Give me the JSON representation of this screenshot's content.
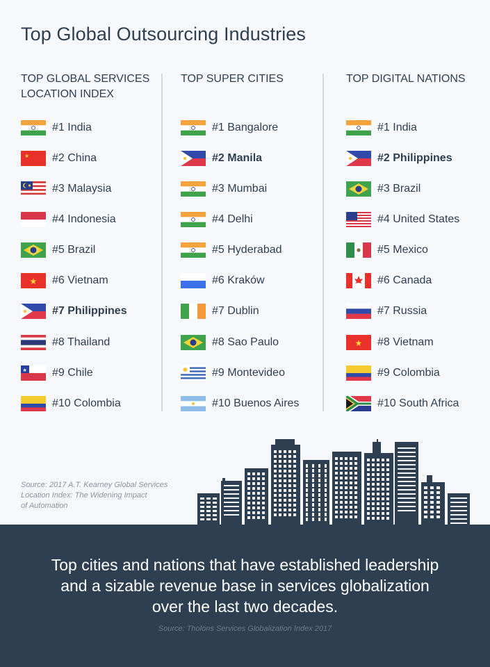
{
  "title": "Top Global Outsourcing Industries",
  "columns": [
    {
      "heading_line1": "TOP GLOBAL SERVICES",
      "heading_line2": "LOCATION INDEX",
      "items": [
        {
          "label": "#1 India",
          "flag": "india-flag-icon",
          "bold": false
        },
        {
          "label": "#2 China",
          "flag": "china-flag-icon",
          "bold": false
        },
        {
          "label": "#3 Malaysia",
          "flag": "malaysia-flag-icon",
          "bold": false
        },
        {
          "label": "#4 Indonesia",
          "flag": "indonesia-flag-icon",
          "bold": false
        },
        {
          "label": "#5 Brazil",
          "flag": "brazil-flag-icon",
          "bold": false
        },
        {
          "label": "#6 Vietnam",
          "flag": "vietnam-flag-icon",
          "bold": false
        },
        {
          "label": "#7 Philippines",
          "flag": "philippines-flag-icon",
          "bold": true
        },
        {
          "label": "#8 Thailand",
          "flag": "thailand-flag-icon",
          "bold": false
        },
        {
          "label": "#9 Chile",
          "flag": "chile-flag-icon",
          "bold": false
        },
        {
          "label": "#10 Colombia",
          "flag": "colombia-flag-icon",
          "bold": false
        }
      ]
    },
    {
      "heading_line1": "TOP SUPER CITIES",
      "heading_line2": "",
      "items": [
        {
          "label": "#1 Bangalore",
          "flag": "india-flag-icon",
          "bold": false
        },
        {
          "label": "#2 Manila",
          "flag": "philippines-flag-icon",
          "bold": true
        },
        {
          "label": "#3 Mumbai",
          "flag": "india-flag-icon",
          "bold": false
        },
        {
          "label": "#4 Delhi",
          "flag": "india-flag-icon",
          "bold": false
        },
        {
          "label": "#5 Hyderabad",
          "flag": "india-flag-icon",
          "bold": false
        },
        {
          "label": "#6 Kraków",
          "flag": "poland-flag-icon",
          "bold": false
        },
        {
          "label": "#7 Dublin",
          "flag": "ireland-flag-icon",
          "bold": false
        },
        {
          "label": "#8 Sao Paulo",
          "flag": "brazil-flag-icon",
          "bold": false
        },
        {
          "label": "#9 Montevideo",
          "flag": "uruguay-flag-icon",
          "bold": false
        },
        {
          "label": "#10 Buenos Aires",
          "flag": "argentina-flag-icon",
          "bold": false
        }
      ]
    },
    {
      "heading_line1": "TOP DIGITAL NATIONS",
      "heading_line2": "",
      "items": [
        {
          "label": "#1 India",
          "flag": "india-flag-icon",
          "bold": false
        },
        {
          "label": "#2 Philippines",
          "flag": "philippines-flag-icon",
          "bold": true
        },
        {
          "label": "#3 Brazil",
          "flag": "brazil-flag-icon",
          "bold": false
        },
        {
          "label": "#4 United States",
          "flag": "usa-flag-icon",
          "bold": false
        },
        {
          "label": "#5 Mexico",
          "flag": "mexico-flag-icon",
          "bold": false
        },
        {
          "label": "#6 Canada",
          "flag": "canada-flag-icon",
          "bold": false
        },
        {
          "label": "#7 Russia",
          "flag": "russia-flag-icon",
          "bold": false
        },
        {
          "label": "#8 Vietnam",
          "flag": "vietnam-flag-icon",
          "bold": false
        },
        {
          "label": "#9 Colombia",
          "flag": "colombia-flag-icon",
          "bold": false
        },
        {
          "label": "#10 South Africa",
          "flag": "south-africa-flag-icon",
          "bold": false
        }
      ]
    }
  ],
  "source_left": {
    "line1": "Source: 2017 A.T. Kearney Global Services",
    "line2": "Location Index: The Widening Impact",
    "line3": "of Automation"
  },
  "bottom": {
    "line1": "Top cities and nations that have established leadership",
    "line2": "and a sizable revenue base in services globalization",
    "line3": "over the last two decades.",
    "source": "Source: Tholons Services Globalization Index 2017"
  },
  "colors": {
    "background": "#f6f8fb",
    "footer": "#2d3f50",
    "text": "#2f3f51",
    "divider": "#d4d9e0"
  }
}
